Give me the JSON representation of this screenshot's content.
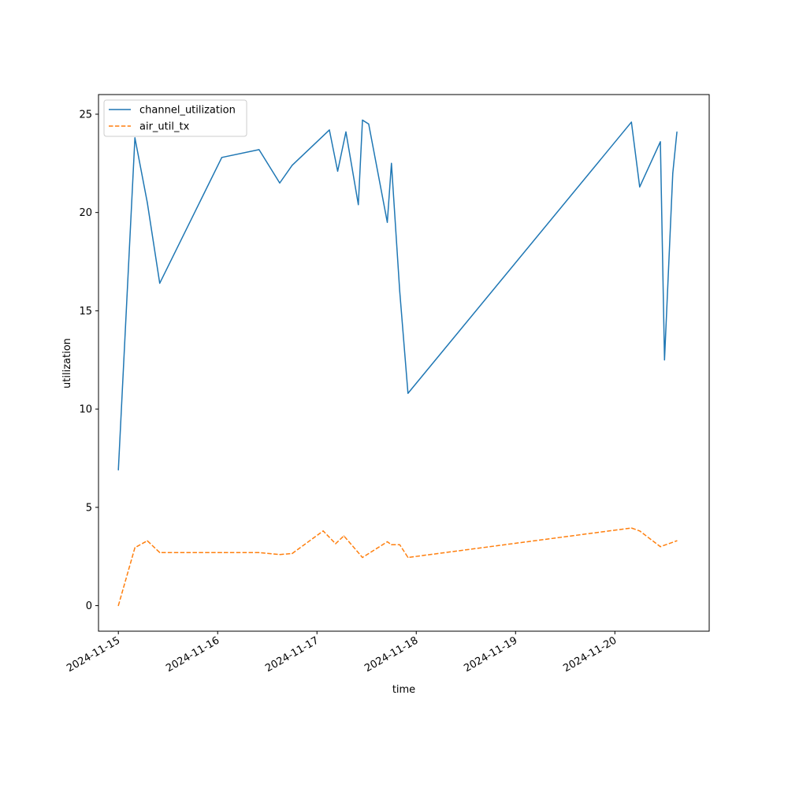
{
  "chart_data": {
    "type": "line",
    "xlabel": "time",
    "ylabel": "utilization",
    "xlim": [
      "2024-11-14 19:12",
      "2024-11-20 22:48"
    ],
    "ylim": [
      -1.3,
      26
    ],
    "x_ticks": [
      "2024-11-15",
      "2024-11-16",
      "2024-11-17",
      "2024-11-18",
      "2024-11-19",
      "2024-11-20"
    ],
    "y_ticks": [
      0,
      5,
      10,
      15,
      20,
      25
    ],
    "legend_position": "top-left",
    "series": [
      {
        "name": "channel_utilization",
        "color": "#1f77b4",
        "dash": "solid",
        "x": [
          "2024-11-15 00:00",
          "2024-11-15 04:00",
          "2024-11-15 07:00",
          "2024-11-15 10:00",
          "2024-11-16 01:00",
          "2024-11-16 10:00",
          "2024-11-16 15:00",
          "2024-11-16 18:00",
          "2024-11-17 03:00",
          "2024-11-17 05:00",
          "2024-11-17 07:00",
          "2024-11-17 10:00",
          "2024-11-17 11:00",
          "2024-11-17 12:30",
          "2024-11-17 17:00",
          "2024-11-17 18:00",
          "2024-11-17 20:00",
          "2024-11-17 22:00",
          "2024-11-20 04:00",
          "2024-11-20 06:00",
          "2024-11-20 11:00",
          "2024-11-20 12:00",
          "2024-11-20 14:00",
          "2024-11-20 15:00"
        ],
        "y": [
          6.9,
          23.8,
          20.5,
          16.4,
          22.8,
          23.2,
          21.5,
          22.4,
          24.2,
          22.1,
          24.1,
          20.4,
          24.7,
          24.5,
          19.5,
          22.5,
          16.0,
          10.8,
          24.6,
          21.3,
          23.6,
          12.5,
          22.0,
          24.1
        ]
      },
      {
        "name": "air_util_tx",
        "color": "#ff7f0e",
        "dash": "dashed",
        "x": [
          "2024-11-15 00:00",
          "2024-11-15 04:00",
          "2024-11-15 07:00",
          "2024-11-15 10:00",
          "2024-11-16 01:00",
          "2024-11-16 10:00",
          "2024-11-16 15:00",
          "2024-11-16 18:00",
          "2024-11-17 01:30",
          "2024-11-17 04:30",
          "2024-11-17 06:30",
          "2024-11-17 11:00",
          "2024-11-17 17:00",
          "2024-11-17 18:00",
          "2024-11-17 20:00",
          "2024-11-17 22:00",
          "2024-11-20 04:00",
          "2024-11-20 06:00",
          "2024-11-20 11:00",
          "2024-11-20 15:00"
        ],
        "y": [
          0.0,
          2.95,
          3.3,
          2.7,
          2.7,
          2.7,
          2.6,
          2.65,
          3.8,
          3.15,
          3.55,
          2.45,
          3.25,
          3.1,
          3.1,
          2.45,
          3.95,
          3.8,
          3.0,
          3.3
        ]
      }
    ]
  }
}
